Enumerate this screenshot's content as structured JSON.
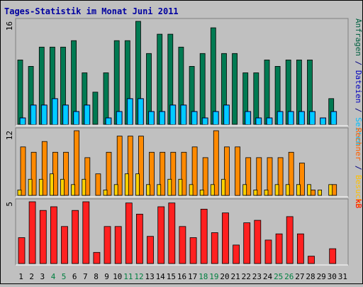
{
  "title": "Tages-Statistik im Monat Juni 2011",
  "chart_data": {
    "type": "bar",
    "title": "Tages-Statistik im Monat Juni 2011",
    "categories": [
      "1",
      "2",
      "3",
      "4",
      "5",
      "6",
      "7",
      "8",
      "9",
      "10",
      "11",
      "12",
      "13",
      "14",
      "15",
      "16",
      "17",
      "18",
      "19",
      "20",
      "21",
      "22",
      "23",
      "24",
      "25",
      "26",
      "27",
      "28",
      "29",
      "30",
      "31"
    ],
    "weekend_days": [
      "4",
      "5",
      "11",
      "12",
      "18",
      "19",
      "25",
      "26"
    ],
    "panels": [
      {
        "ytick": "16",
        "ymax": 16,
        "side_labels": [
          {
            "text": "Anfragen",
            "color": "#006040"
          },
          {
            "text": " / ",
            "color": "#000080"
          },
          {
            "text": "Dateien",
            "color": "#0000c0"
          },
          {
            "text": " / ",
            "color": "#000080"
          },
          {
            "text": "Seiten",
            "color": "#00c0ff"
          }
        ],
        "series": [
          {
            "name": "Anfragen",
            "color": "#007a52",
            "values": [
              10,
              9,
              12,
              12,
              12,
              13,
              8,
              5,
              8,
              13,
              13,
              16,
              11,
              14,
              14,
              12,
              9,
              11,
              15,
              11,
              11,
              8,
              8,
              10,
              9,
              10,
              10,
              10,
              0,
              4,
              0
            ]
          },
          {
            "name": "Dateien",
            "color": "#0072ff",
            "values": [
              1,
              3,
              3,
              4,
              3,
              2,
              3,
              0,
              1,
              2,
              4,
              4,
              2,
              2,
              3,
              3,
              2,
              1,
              2,
              3,
              0,
              2,
              1,
              1,
              2,
              2,
              2,
              2,
              1,
              2,
              0
            ]
          },
          {
            "name": "Seiten",
            "color": "#00ccff",
            "values": [
              1,
              3,
              3,
              4,
              3,
              2,
              3,
              0,
              1,
              2,
              4,
              4,
              2,
              2,
              3,
              3,
              2,
              1,
              2,
              3,
              0,
              2,
              1,
              1,
              2,
              2,
              2,
              2,
              1,
              2,
              0
            ]
          }
        ]
      },
      {
        "ytick": "12",
        "ymax": 12,
        "side_labels": [
          {
            "text": "Rechner",
            "color": "#ff6000"
          },
          {
            "text": " / ",
            "color": "#000080"
          },
          {
            "text": "Besuche",
            "color": "#ffc000"
          }
        ],
        "series": [
          {
            "name": "Besuche",
            "color": "#ff8a00",
            "values": [
              9,
              8,
              10,
              8,
              8,
              12,
              7,
              4,
              8,
              11,
              11,
              11,
              8,
              8,
              8,
              8,
              9,
              7,
              12,
              9,
              9,
              7,
              7,
              7,
              7,
              8,
              6,
              1,
              0,
              2,
              0
            ]
          },
          {
            "name": "Rechner",
            "color": "#ffd200",
            "values": [
              1,
              3,
              3,
              4,
              3,
              2,
              3,
              0,
              1,
              2,
              4,
              4,
              2,
              2,
              3,
              3,
              2,
              1,
              2,
              3,
              0,
              2,
              1,
              1,
              2,
              2,
              2,
              2,
              1,
              2,
              0
            ]
          }
        ]
      },
      {
        "ytick": "5",
        "ymax": 5,
        "side_labels": [
          {
            "text": "kB",
            "color": "#ff0000"
          }
        ],
        "series": [
          {
            "name": "kB",
            "color": "#ff2020",
            "values": [
              2.1,
              5.0,
              4.3,
              4.6,
              3.0,
              4.3,
              5.0,
              0.9,
              3.0,
              3.0,
              4.9,
              4.0,
              2.2,
              4.6,
              4.9,
              3.0,
              2.1,
              4.4,
              2.5,
              4.1,
              1.5,
              3.3,
              3.5,
              1.9,
              2.4,
              3.8,
              2.4,
              0.6,
              0,
              1.2,
              0
            ]
          }
        ]
      }
    ]
  }
}
